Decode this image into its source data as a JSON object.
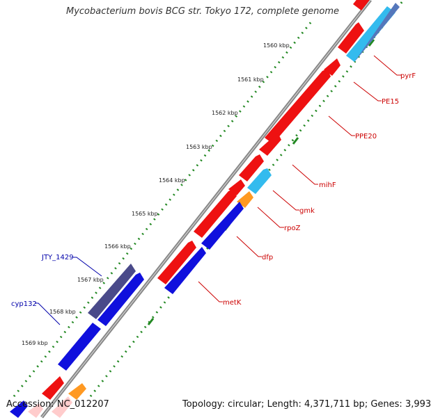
{
  "title": "Mycobacterium bovis BCG str. Tokyo 172, complete genome",
  "footer": {
    "accession_label": "Accession:",
    "accession_value": "NC_012207",
    "topology_label": "Topology:",
    "topology_value": "circular;",
    "length_label": "Length:",
    "length_value": "4,371,711 bp;",
    "genes_label": "Genes:",
    "genes_value": "3,993"
  },
  "colors": {
    "forward_gene": "#ee1111",
    "reverse_gene": "#1010dd",
    "rrna_gene": "#33bbee",
    "orange_gene": "#ff9922",
    "dark_gene": "#4a4a8a",
    "backbone": "#888888",
    "tick_dots": "#228822",
    "red_label": "#cc0000",
    "blue_label": "#0000aa"
  },
  "scale_ticks": [
    "1560 kbp",
    "1561 kbp",
    "1562 kbp",
    "1563 kbp",
    "1564 kbp",
    "1565 kbp",
    "1566 kbp",
    "1567 kbp",
    "1568 kbp",
    "1569 kbp"
  ],
  "gene_labels": [
    {
      "name": "pyrF",
      "color": "red"
    },
    {
      "name": "PE15",
      "color": "red"
    },
    {
      "name": "PPE20",
      "color": "red"
    },
    {
      "name": "mihF",
      "color": "red"
    },
    {
      "name": "gmk",
      "color": "red"
    },
    {
      "name": "rpoZ",
      "color": "red"
    },
    {
      "name": "dfp",
      "color": "red"
    },
    {
      "name": "metK",
      "color": "red"
    },
    {
      "name": "JTY_1429",
      "color": "blue"
    },
    {
      "name": "cyp132",
      "color": "blue"
    }
  ]
}
